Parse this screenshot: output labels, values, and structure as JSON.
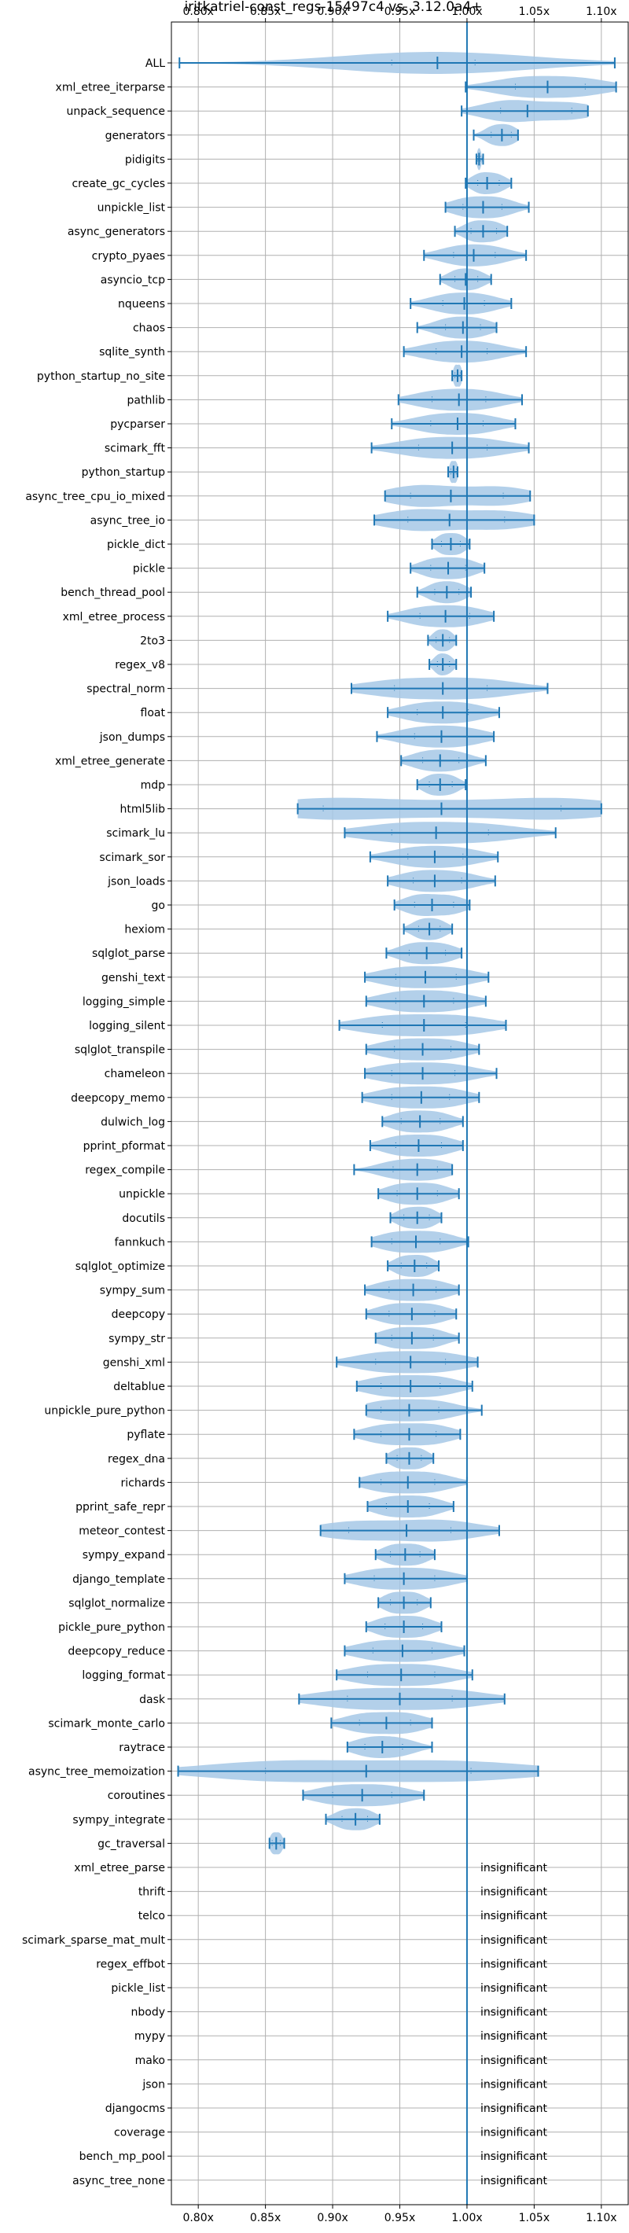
{
  "chart_data": {
    "type": "violin",
    "title": "iritkatriel-const_regs-15497c4 vs. 3.12.0a4+",
    "xlabel": "",
    "ylabel": "",
    "xlim": [
      0.78,
      1.12
    ],
    "xticks": [
      0.8,
      0.85,
      0.9,
      0.95,
      1.0,
      1.05,
      1.1
    ],
    "xtick_labels": [
      "0.80x",
      "0.85x",
      "0.90x",
      "0.95x",
      "1.00x",
      "1.05x",
      "1.10x"
    ],
    "reference_line": 1.0,
    "grid": true,
    "colors": {
      "violin": "#a6c8e6",
      "line": "#1f77b4",
      "grid": "#b0b0b0"
    },
    "insignificant_label": "insignificant",
    "benchmarks": [
      {
        "name": "ALL",
        "min": 0.786,
        "max": 1.11,
        "median": 0.978,
        "mean": 0.978,
        "q1": 0.944,
        "q3": 1.006
      },
      {
        "name": "xml_etree_iterparse",
        "min": 0.999,
        "max": 1.111,
        "median": 1.06,
        "mean": 1.06,
        "q1": 1.036,
        "q3": 1.088
      },
      {
        "name": "unpack_sequence",
        "min": 0.996,
        "max": 1.09,
        "median": 1.045,
        "mean": 1.045,
        "q1": 1.025,
        "q3": 1.078
      },
      {
        "name": "generators",
        "min": 1.005,
        "max": 1.038,
        "median": 1.026,
        "mean": 1.026,
        "q1": 1.018,
        "q3": 1.033
      },
      {
        "name": "pidigits",
        "min": 1.007,
        "max": 1.012,
        "median": 1.009,
        "mean": 1.009,
        "q1": 1.008,
        "q3": 1.01
      },
      {
        "name": "create_gc_cycles",
        "min": 0.999,
        "max": 1.033,
        "median": 1.015,
        "mean": 1.015,
        "q1": 1.008,
        "q3": 1.024
      },
      {
        "name": "unpickle_list",
        "min": 0.984,
        "max": 1.046,
        "median": 1.012,
        "mean": 1.012,
        "q1": 0.997,
        "q3": 1.026
      },
      {
        "name": "async_generators",
        "min": 0.991,
        "max": 1.03,
        "median": 1.012,
        "mean": 1.012,
        "q1": 1.003,
        "q3": 1.022
      },
      {
        "name": "crypto_pyaes",
        "min": 0.968,
        "max": 1.044,
        "median": 1.005,
        "mean": 1.005,
        "q1": 0.99,
        "q3": 1.021
      },
      {
        "name": "asyncio_tcp",
        "min": 0.98,
        "max": 1.018,
        "median": 0.999,
        "mean": 0.999,
        "q1": 0.991,
        "q3": 1.008
      },
      {
        "name": "nqueens",
        "min": 0.958,
        "max": 1.033,
        "median": 0.998,
        "mean": 0.998,
        "q1": 0.982,
        "q3": 1.013
      },
      {
        "name": "chaos",
        "min": 0.963,
        "max": 1.022,
        "median": 0.997,
        "mean": 0.997,
        "q1": 0.984,
        "q3": 1.01
      },
      {
        "name": "sqlite_synth",
        "min": 0.953,
        "max": 1.044,
        "median": 0.996,
        "mean": 0.996,
        "q1": 0.977,
        "q3": 1.015
      },
      {
        "name": "python_startup_no_site",
        "min": 0.989,
        "max": 0.996,
        "median": 0.993,
        "mean": 0.993,
        "q1": 0.991,
        "q3": 0.995
      },
      {
        "name": "pathlib",
        "min": 0.949,
        "max": 1.041,
        "median": 0.994,
        "mean": 0.994,
        "q1": 0.974,
        "q3": 1.014
      },
      {
        "name": "pycparser",
        "min": 0.944,
        "max": 1.036,
        "median": 0.993,
        "mean": 0.993,
        "q1": 0.973,
        "q3": 1.012
      },
      {
        "name": "scimark_fft",
        "min": 0.929,
        "max": 1.046,
        "median": 0.989,
        "mean": 0.989,
        "q1": 0.964,
        "q3": 1.015
      },
      {
        "name": "python_startup",
        "min": 0.986,
        "max": 0.993,
        "median": 0.99,
        "mean": 0.99,
        "q1": 0.988,
        "q3": 0.992
      },
      {
        "name": "async_tree_cpu_io_mixed",
        "min": 0.939,
        "max": 1.047,
        "median": 0.988,
        "mean": 0.988,
        "q1": 0.958,
        "q3": 1.027
      },
      {
        "name": "async_tree_io",
        "min": 0.931,
        "max": 1.05,
        "median": 0.987,
        "mean": 0.987,
        "q1": 0.956,
        "q3": 1.028
      },
      {
        "name": "pickle_dict",
        "min": 0.974,
        "max": 1.002,
        "median": 0.988,
        "mean": 0.988,
        "q1": 0.981,
        "q3": 0.995
      },
      {
        "name": "pickle",
        "min": 0.958,
        "max": 1.013,
        "median": 0.986,
        "mean": 0.986,
        "q1": 0.973,
        "q3": 0.999
      },
      {
        "name": "bench_thread_pool",
        "min": 0.963,
        "max": 1.003,
        "median": 0.985,
        "mean": 0.985,
        "q1": 0.976,
        "q3": 0.994
      },
      {
        "name": "xml_etree_process",
        "min": 0.941,
        "max": 1.02,
        "median": 0.984,
        "mean": 0.984,
        "q1": 0.965,
        "q3": 1.002
      },
      {
        "name": "2to3",
        "min": 0.971,
        "max": 0.992,
        "median": 0.982,
        "mean": 0.982,
        "q1": 0.977,
        "q3": 0.987
      },
      {
        "name": "regex_v8",
        "min": 0.972,
        "max": 0.992,
        "median": 0.982,
        "mean": 0.982,
        "q1": 0.978,
        "q3": 0.987
      },
      {
        "name": "spectral_norm",
        "min": 0.914,
        "max": 1.06,
        "median": 0.982,
        "mean": 0.982,
        "q1": 0.946,
        "q3": 1.015
      },
      {
        "name": "float",
        "min": 0.941,
        "max": 1.024,
        "median": 0.982,
        "mean": 0.982,
        "q1": 0.963,
        "q3": 1.001
      },
      {
        "name": "json_dumps",
        "min": 0.933,
        "max": 1.02,
        "median": 0.981,
        "mean": 0.981,
        "q1": 0.961,
        "q3": 1.0
      },
      {
        "name": "xml_etree_generate",
        "min": 0.951,
        "max": 1.014,
        "median": 0.98,
        "mean": 0.98,
        "q1": 0.967,
        "q3": 0.994
      },
      {
        "name": "mdp",
        "min": 0.963,
        "max": 0.999,
        "median": 0.98,
        "mean": 0.98,
        "q1": 0.972,
        "q3": 0.989
      },
      {
        "name": "html5lib",
        "min": 0.874,
        "max": 1.1,
        "median": 0.981,
        "mean": 0.981,
        "q1": 0.893,
        "q3": 1.07
      },
      {
        "name": "scimark_lu",
        "min": 0.909,
        "max": 1.066,
        "median": 0.977,
        "mean": 0.977,
        "q1": 0.944,
        "q3": 1.016
      },
      {
        "name": "scimark_sor",
        "min": 0.928,
        "max": 1.023,
        "median": 0.976,
        "mean": 0.976,
        "q1": 0.956,
        "q3": 0.997
      },
      {
        "name": "json_loads",
        "min": 0.941,
        "max": 1.021,
        "median": 0.976,
        "mean": 0.976,
        "q1": 0.96,
        "q3": 0.996
      },
      {
        "name": "go",
        "min": 0.946,
        "max": 1.002,
        "median": 0.974,
        "mean": 0.974,
        "q1": 0.961,
        "q3": 0.99
      },
      {
        "name": "hexiom",
        "min": 0.953,
        "max": 0.989,
        "median": 0.972,
        "mean": 0.972,
        "q1": 0.964,
        "q3": 0.98
      },
      {
        "name": "sqlglot_parse",
        "min": 0.94,
        "max": 0.996,
        "median": 0.97,
        "mean": 0.97,
        "q1": 0.957,
        "q3": 0.984
      },
      {
        "name": "genshi_text",
        "min": 0.924,
        "max": 1.016,
        "median": 0.969,
        "mean": 0.969,
        "q1": 0.947,
        "q3": 0.992
      },
      {
        "name": "logging_simple",
        "min": 0.925,
        "max": 1.014,
        "median": 0.968,
        "mean": 0.968,
        "q1": 0.947,
        "q3": 0.99
      },
      {
        "name": "logging_silent",
        "min": 0.905,
        "max": 1.029,
        "median": 0.968,
        "mean": 0.968,
        "q1": 0.937,
        "q3": 0.999
      },
      {
        "name": "sqlglot_transpile",
        "min": 0.925,
        "max": 1.009,
        "median": 0.967,
        "mean": 0.967,
        "q1": 0.946,
        "q3": 0.988
      },
      {
        "name": "chameleon",
        "min": 0.924,
        "max": 1.022,
        "median": 0.967,
        "mean": 0.967,
        "q1": 0.944,
        "q3": 0.991
      },
      {
        "name": "deepcopy_memo",
        "min": 0.922,
        "max": 1.009,
        "median": 0.966,
        "mean": 0.966,
        "q1": 0.944,
        "q3": 0.987
      },
      {
        "name": "dulwich_log",
        "min": 0.937,
        "max": 0.997,
        "median": 0.965,
        "mean": 0.965,
        "q1": 0.951,
        "q3": 0.98
      },
      {
        "name": "pprint_pformat",
        "min": 0.928,
        "max": 0.997,
        "median": 0.964,
        "mean": 0.964,
        "q1": 0.947,
        "q3": 0.981
      },
      {
        "name": "regex_compile",
        "min": 0.916,
        "max": 0.989,
        "median": 0.963,
        "mean": 0.963,
        "q1": 0.945,
        "q3": 0.978
      },
      {
        "name": "unpickle",
        "min": 0.934,
        "max": 0.994,
        "median": 0.963,
        "mean": 0.963,
        "q1": 0.948,
        "q3": 0.978
      },
      {
        "name": "docutils",
        "min": 0.943,
        "max": 0.981,
        "median": 0.963,
        "mean": 0.963,
        "q1": 0.953,
        "q3": 0.972
      },
      {
        "name": "fannkuch",
        "min": 0.929,
        "max": 1.001,
        "median": 0.962,
        "mean": 0.962,
        "q1": 0.944,
        "q3": 0.98
      },
      {
        "name": "sqlglot_optimize",
        "min": 0.941,
        "max": 0.979,
        "median": 0.961,
        "mean": 0.961,
        "q1": 0.951,
        "q3": 0.97
      },
      {
        "name": "sympy_sum",
        "min": 0.924,
        "max": 0.994,
        "median": 0.96,
        "mean": 0.96,
        "q1": 0.942,
        "q3": 0.977
      },
      {
        "name": "deepcopy",
        "min": 0.925,
        "max": 0.992,
        "median": 0.959,
        "mean": 0.959,
        "q1": 0.942,
        "q3": 0.976
      },
      {
        "name": "sympy_str",
        "min": 0.932,
        "max": 0.994,
        "median": 0.959,
        "mean": 0.959,
        "q1": 0.944,
        "q3": 0.975
      },
      {
        "name": "genshi_xml",
        "min": 0.903,
        "max": 1.008,
        "median": 0.958,
        "mean": 0.958,
        "q1": 0.932,
        "q3": 0.984
      },
      {
        "name": "deltablue",
        "min": 0.918,
        "max": 1.004,
        "median": 0.958,
        "mean": 0.958,
        "q1": 0.936,
        "q3": 0.98
      },
      {
        "name": "unpickle_pure_python",
        "min": 0.925,
        "max": 1.011,
        "median": 0.957,
        "mean": 0.957,
        "q1": 0.936,
        "q3": 0.979
      },
      {
        "name": "pyflate",
        "min": 0.916,
        "max": 0.995,
        "median": 0.957,
        "mean": 0.957,
        "q1": 0.936,
        "q3": 0.977
      },
      {
        "name": "regex_dna",
        "min": 0.94,
        "max": 0.975,
        "median": 0.957,
        "mean": 0.957,
        "q1": 0.948,
        "q3": 0.966
      },
      {
        "name": "richards",
        "min": 0.92,
        "max": 1.0,
        "median": 0.956,
        "mean": 0.956,
        "q1": 0.936,
        "q3": 0.976
      },
      {
        "name": "pprint_safe_repr",
        "min": 0.926,
        "max": 0.99,
        "median": 0.956,
        "mean": 0.956,
        "q1": 0.94,
        "q3": 0.972
      },
      {
        "name": "meteor_contest",
        "min": 0.891,
        "max": 1.024,
        "median": 0.955,
        "mean": 0.955,
        "q1": 0.912,
        "q3": 0.988
      },
      {
        "name": "sympy_expand",
        "min": 0.932,
        "max": 0.976,
        "median": 0.954,
        "mean": 0.954,
        "q1": 0.943,
        "q3": 0.965
      },
      {
        "name": "django_template",
        "min": 0.909,
        "max": 1.0,
        "median": 0.953,
        "mean": 0.953,
        "q1": 0.931,
        "q3": 0.976
      },
      {
        "name": "sqlglot_normalize",
        "min": 0.934,
        "max": 0.973,
        "median": 0.953,
        "mean": 0.953,
        "q1": 0.943,
        "q3": 0.963
      },
      {
        "name": "pickle_pure_python",
        "min": 0.925,
        "max": 0.981,
        "median": 0.953,
        "mean": 0.953,
        "q1": 0.939,
        "q3": 0.967
      },
      {
        "name": "deepcopy_reduce",
        "min": 0.909,
        "max": 0.998,
        "median": 0.952,
        "mean": 0.952,
        "q1": 0.93,
        "q3": 0.974
      },
      {
        "name": "logging_format",
        "min": 0.903,
        "max": 1.004,
        "median": 0.951,
        "mean": 0.951,
        "q1": 0.926,
        "q3": 0.976
      },
      {
        "name": "dask",
        "min": 0.875,
        "max": 1.028,
        "median": 0.95,
        "mean": 0.95,
        "q1": 0.911,
        "q3": 0.989
      },
      {
        "name": "scimark_monte_carlo",
        "min": 0.899,
        "max": 0.974,
        "median": 0.94,
        "mean": 0.94,
        "q1": 0.92,
        "q3": 0.958
      },
      {
        "name": "raytrace",
        "min": 0.911,
        "max": 0.974,
        "median": 0.937,
        "mean": 0.937,
        "q1": 0.924,
        "q3": 0.952
      },
      {
        "name": "async_tree_memoization",
        "min": 0.785,
        "max": 1.053,
        "median": 0.925,
        "mean": 0.925,
        "q1": 0.85,
        "q3": 1.003
      },
      {
        "name": "coroutines",
        "min": 0.878,
        "max": 0.968,
        "median": 0.922,
        "mean": 0.922,
        "q1": 0.9,
        "q3": 0.944
      },
      {
        "name": "sympy_integrate",
        "min": 0.895,
        "max": 0.935,
        "median": 0.917,
        "mean": 0.917,
        "q1": 0.907,
        "q3": 0.926
      },
      {
        "name": "gc_traversal",
        "min": 0.853,
        "max": 0.864,
        "median": 0.858,
        "mean": 0.858,
        "q1": 0.855,
        "q3": 0.861
      },
      {
        "name": "xml_etree_parse",
        "insignificant": true
      },
      {
        "name": "thrift",
        "insignificant": true
      },
      {
        "name": "telco",
        "insignificant": true
      },
      {
        "name": "scimark_sparse_mat_mult",
        "insignificant": true
      },
      {
        "name": "regex_effbot",
        "insignificant": true
      },
      {
        "name": "pickle_list",
        "insignificant": true
      },
      {
        "name": "nbody",
        "insignificant": true
      },
      {
        "name": "mypy",
        "insignificant": true
      },
      {
        "name": "mako",
        "insignificant": true
      },
      {
        "name": "json",
        "insignificant": true
      },
      {
        "name": "djangocms",
        "insignificant": true
      },
      {
        "name": "coverage",
        "insignificant": true
      },
      {
        "name": "bench_mp_pool",
        "insignificant": true
      },
      {
        "name": "async_tree_none",
        "insignificant": true
      }
    ]
  }
}
